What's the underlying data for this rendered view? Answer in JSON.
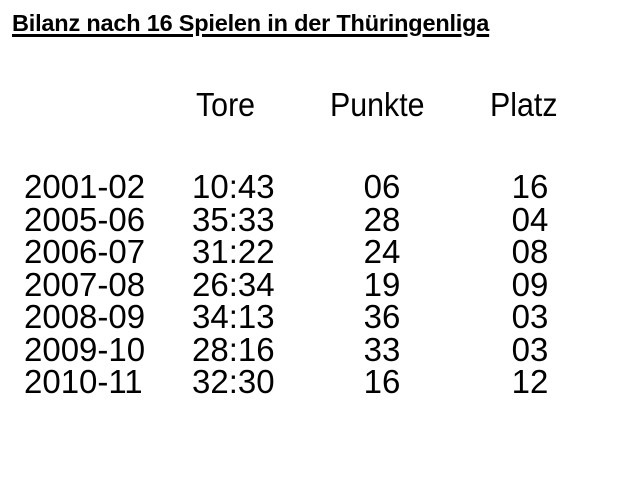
{
  "title": "Bilanz nach 16 Spielen in der Thüringenliga",
  "headers": {
    "tore": "Tore",
    "punkte": "Punkte",
    "platz": "Platz"
  },
  "rows": [
    {
      "season": "2001-02",
      "tore": "10:43",
      "punkte": "06",
      "platz": "16"
    },
    {
      "season": "2005-06",
      "tore": "35:33",
      "punkte": "28",
      "platz": "04"
    },
    {
      "season": "2006-07",
      "tore": "31:22",
      "punkte": "24",
      "platz": "08"
    },
    {
      "season": "2007-08",
      "tore": "26:34",
      "punkte": "19",
      "platz": "09"
    },
    {
      "season": "2008-09",
      "tore": "34:13",
      "punkte": "36",
      "platz": "03"
    },
    {
      "season": "2009-10",
      "tore": "28:16",
      "punkte": "33",
      "platz": "03"
    },
    {
      "season": "2010-11",
      "tore": "32:30",
      "punkte": "16",
      "platz": "12"
    }
  ]
}
